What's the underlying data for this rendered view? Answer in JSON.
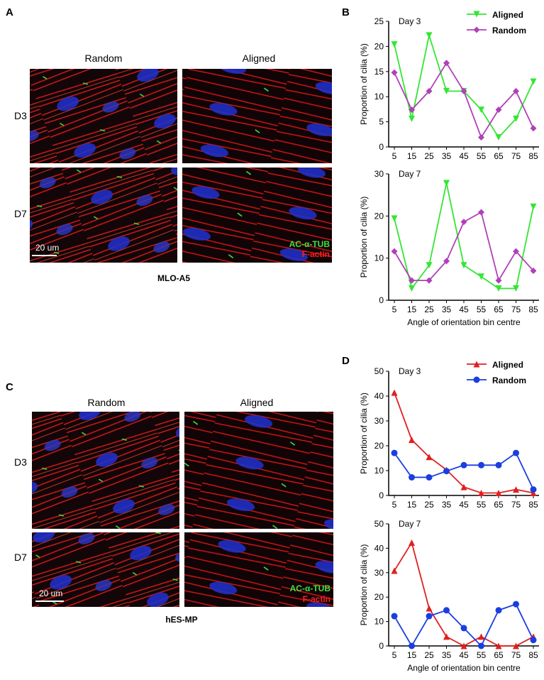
{
  "figure": {
    "panel_labels": [
      "A",
      "B",
      "C",
      "D"
    ],
    "image_panels": [
      {
        "columns": [
          "Random",
          "Aligned"
        ],
        "rows": [
          "D3",
          "D7"
        ],
        "scale_bar": "20 um",
        "stains": [
          "AC-α-TUB",
          "F-actin"
        ],
        "cell_line": "MLO-A5"
      },
      {
        "columns": [
          "Random",
          "Aligned"
        ],
        "rows": [
          "D3",
          "D7"
        ],
        "scale_bar": "20 um",
        "stains": [
          "AC-α-TUB",
          "F-actin"
        ],
        "cell_line": "hES-MP"
      }
    ]
  },
  "chart_data": [
    {
      "type": "line",
      "title": "Day 3",
      "y_label": "Proportion of cilia (%)",
      "legend": true,
      "categories": [
        "5",
        "15",
        "25",
        "35",
        "45",
        "55",
        "65",
        "75",
        "85"
      ],
      "ylim": [
        0,
        25
      ],
      "yticks": [
        0,
        5,
        10,
        15,
        20,
        25
      ],
      "series": [
        {
          "name": "Aligned",
          "color": "#33e633",
          "marker": "triangle-down",
          "values": [
            20.4,
            5.6,
            22.2,
            11.1,
            11.1,
            7.4,
            1.9,
            5.6,
            13.0
          ]
        },
        {
          "name": "Random",
          "color": "#b040b8",
          "marker": "diamond",
          "values": [
            14.8,
            7.4,
            11.1,
            16.7,
            11.1,
            1.9,
            7.4,
            11.1,
            3.7
          ]
        }
      ]
    },
    {
      "type": "line",
      "title": "Day 7",
      "y_label": "Proportion of cilia (%)",
      "x_label": "Angle of orientation bin centre",
      "categories": [
        "5",
        "15",
        "25",
        "35",
        "45",
        "55",
        "65",
        "75",
        "85"
      ],
      "ylim": [
        0,
        30
      ],
      "yticks": [
        0,
        10,
        20,
        30
      ],
      "series": [
        {
          "color": "#33e633",
          "marker": "triangle-down",
          "values": [
            19.4,
            2.8,
            8.3,
            27.8,
            8.3,
            5.6,
            2.8,
            2.8,
            22.2
          ]
        },
        {
          "color": "#b040b8",
          "marker": "diamond",
          "values": [
            11.6,
            4.7,
            4.7,
            9.3,
            18.6,
            20.9,
            4.7,
            11.6,
            7.0
          ]
        }
      ]
    },
    {
      "type": "line",
      "title": "Day 3",
      "y_label": "Proportion of cilia (%)",
      "legend": true,
      "categories": [
        "5",
        "15",
        "25",
        "35",
        "45",
        "55",
        "65",
        "75",
        "85"
      ],
      "ylim": [
        0,
        50
      ],
      "yticks": [
        0,
        10,
        20,
        30,
        40,
        50
      ],
      "series": [
        {
          "name": "Aligned",
          "color": "#e02020",
          "marker": "triangle-up",
          "values": [
            41.4,
            22.4,
            15.5,
            10.3,
            3.4,
            1.0,
            1.0,
            2.4,
            1.0
          ]
        },
        {
          "name": "Random",
          "color": "#1a3ee0",
          "marker": "circle",
          "values": [
            17.1,
            7.3,
            7.3,
            9.8,
            12.2,
            12.2,
            12.2,
            17.1,
            2.4
          ]
        }
      ]
    },
    {
      "type": "line",
      "title": "Day 7",
      "y_label": "Proportion of cilia (%)",
      "x_label": "Angle of orientation bin centre",
      "categories": [
        "5",
        "15",
        "25",
        "35",
        "45",
        "55",
        "65",
        "75",
        "85"
      ],
      "ylim": [
        0,
        50
      ],
      "yticks": [
        0,
        10,
        20,
        30,
        40,
        50
      ],
      "series": [
        {
          "color": "#e02020",
          "marker": "triangle-up",
          "values": [
            30.8,
            42.3,
            15.4,
            3.8,
            0,
            3.8,
            0,
            0,
            3.8
          ]
        },
        {
          "color": "#1a3ee0",
          "marker": "circle",
          "values": [
            12.2,
            0,
            12.2,
            14.6,
            7.3,
            0,
            14.6,
            17.1,
            2.4
          ]
        }
      ]
    }
  ]
}
